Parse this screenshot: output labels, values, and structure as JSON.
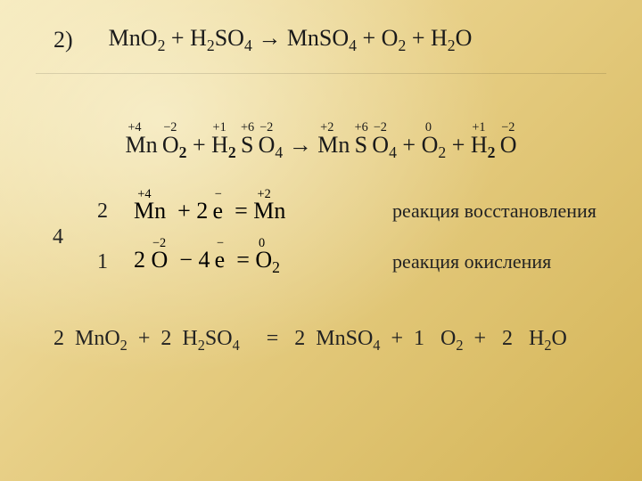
{
  "item_number": "2)",
  "eq_unbalanced": {
    "lhs": [
      {
        "el": "Mn",
        "sub": "",
        "ox": ""
      },
      {
        "el": "O",
        "sub": "2",
        "ox": ""
      },
      {
        "plus": "+"
      },
      {
        "el": "H",
        "sub": "2",
        "ox": ""
      },
      {
        "el": "S",
        "sub": "",
        "ox": ""
      },
      {
        "el": "O",
        "sub": "4",
        "ox": ""
      }
    ],
    "arrow": "→",
    "rhs": [
      {
        "el": "Mn",
        "sub": "",
        "ox": ""
      },
      {
        "el": "S",
        "sub": "",
        "ox": ""
      },
      {
        "el": "O",
        "sub": "4",
        "ox": ""
      },
      {
        "plus": "+"
      },
      {
        "el": "O",
        "sub": "2",
        "ox": ""
      },
      {
        "plus": "+"
      },
      {
        "el": "H",
        "sub": "2",
        "ox": ""
      },
      {
        "el": "O",
        "sub": "",
        "ox": ""
      }
    ]
  },
  "eq_oxstates": {
    "lhs": [
      {
        "el": "Mn",
        "sub": "",
        "ox": "+4"
      },
      {
        "el": "O",
        "sub": "2",
        "ox": "−2",
        "subbold": true
      },
      {
        "plus": "+"
      },
      {
        "el": "H",
        "sub": "2",
        "ox": "+1",
        "subbold": true
      },
      {
        "el": "S",
        "sub": "",
        "ox": "+6"
      },
      {
        "el": "O",
        "sub": "4",
        "ox": "−2"
      }
    ],
    "arrow": "→",
    "rhs": [
      {
        "el": "Mn",
        "sub": "",
        "ox": "+2"
      },
      {
        "el": "S",
        "sub": "",
        "ox": "+6"
      },
      {
        "el": "O",
        "sub": "4",
        "ox": "−2"
      },
      {
        "plus": "+"
      },
      {
        "el": "O",
        "sub": "2",
        "ox": "0"
      },
      {
        "plus": "+"
      },
      {
        "el": "H",
        "sub": "2",
        "ox": "+1",
        "subbold": true
      },
      {
        "el": "O",
        "sub": "",
        "ox": "−2"
      }
    ]
  },
  "balance": {
    "col1_top": "2",
    "col1_bot": "1",
    "col2": "4",
    "half1": {
      "left_ox": "+4",
      "left_el": "Mn",
      "e_coef": "2",
      "e_sign": "+",
      "right_ox": "+2",
      "right_el": "Mn",
      "right_sub": "",
      "prefix": ""
    },
    "half2": {
      "left_ox": "−2",
      "left_el": "O",
      "e_coef": "4",
      "e_sign": "−",
      "right_ox": "0",
      "right_el": "O",
      "right_sub": "2",
      "prefix": "2"
    },
    "label1": "реакция восстановления",
    "label2": "реакция окисления"
  },
  "final": {
    "c1": "2",
    "f1": "MnO",
    "s1": "2",
    "c2": "2",
    "f2": "H",
    "s2a": "2",
    "f2b": "SO",
    "s2b": "4",
    "eq": "=",
    "c3": "2",
    "f3": "MnSO",
    "s3": "4",
    "c4": "1",
    "f4": "O",
    "s4": "2",
    "c5": "2",
    "f5": "H",
    "s5": "2",
    "f5b": "O"
  },
  "colors": {
    "text": "#1a1a1a",
    "bg_light": "#f5e8b8",
    "bg_dark": "#d4b456"
  },
  "fontsize_main": 26,
  "fontsize_label": 22
}
